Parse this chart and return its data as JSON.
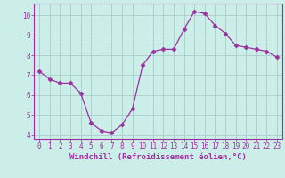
{
  "x": [
    0,
    1,
    2,
    3,
    4,
    5,
    6,
    7,
    8,
    9,
    10,
    11,
    12,
    13,
    14,
    15,
    16,
    17,
    18,
    19,
    20,
    21,
    22,
    23
  ],
  "y": [
    7.2,
    6.8,
    6.6,
    6.6,
    6.1,
    4.6,
    4.2,
    4.1,
    4.5,
    5.3,
    7.5,
    8.2,
    8.3,
    8.3,
    9.3,
    10.2,
    10.1,
    9.5,
    9.1,
    8.5,
    8.4,
    8.3,
    8.2,
    7.9
  ],
  "line_color": "#9b30a0",
  "marker": "D",
  "marker_size": 2.5,
  "background_color": "#cceee8",
  "grid_color": "#aacccc",
  "xlabel": "Windchill (Refroidissement éolien,°C)",
  "xlim": [
    -0.5,
    23.5
  ],
  "ylim": [
    3.8,
    10.6
  ],
  "yticks": [
    4,
    5,
    6,
    7,
    8,
    9,
    10
  ],
  "xticks": [
    0,
    1,
    2,
    3,
    4,
    5,
    6,
    7,
    8,
    9,
    10,
    11,
    12,
    13,
    14,
    15,
    16,
    17,
    18,
    19,
    20,
    21,
    22,
    23
  ],
  "tick_color": "#9b30a0",
  "label_fontsize": 6.5,
  "tick_fontsize": 5.5,
  "spine_color": "#9b30a0",
  "line_width": 0.9
}
